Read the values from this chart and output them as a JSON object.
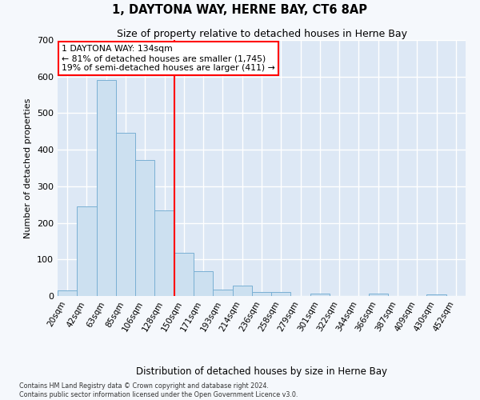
{
  "title": "1, DAYTONA WAY, HERNE BAY, CT6 8AP",
  "subtitle": "Size of property relative to detached houses in Herne Bay",
  "xlabel": "Distribution of detached houses by size in Herne Bay",
  "ylabel": "Number of detached properties",
  "bar_color": "#cce0f0",
  "bar_edge_color": "#7ab0d4",
  "fig_bg_color": "#f5f8fc",
  "plot_bg_color": "#dde8f5",
  "grid_color": "#ffffff",
  "categories": [
    "20sqm",
    "42sqm",
    "63sqm",
    "85sqm",
    "106sqm",
    "128sqm",
    "150sqm",
    "171sqm",
    "193sqm",
    "214sqm",
    "236sqm",
    "258sqm",
    "279sqm",
    "301sqm",
    "322sqm",
    "344sqm",
    "366sqm",
    "387sqm",
    "409sqm",
    "430sqm",
    "452sqm"
  ],
  "values": [
    15,
    245,
    590,
    447,
    372,
    235,
    118,
    67,
    18,
    28,
    10,
    10,
    0,
    6,
    0,
    0,
    7,
    0,
    0,
    5,
    0
  ],
  "ylim": [
    0,
    700
  ],
  "yticks": [
    0,
    100,
    200,
    300,
    400,
    500,
    600,
    700
  ],
  "red_line_bin": 6,
  "annotation_text": "1 DAYTONA WAY: 134sqm\n← 81% of detached houses are smaller (1,745)\n19% of semi-detached houses are larger (411) →",
  "footer_line1": "Contains HM Land Registry data © Crown copyright and database right 2024.",
  "footer_line2": "Contains public sector information licensed under the Open Government Licence v3.0."
}
